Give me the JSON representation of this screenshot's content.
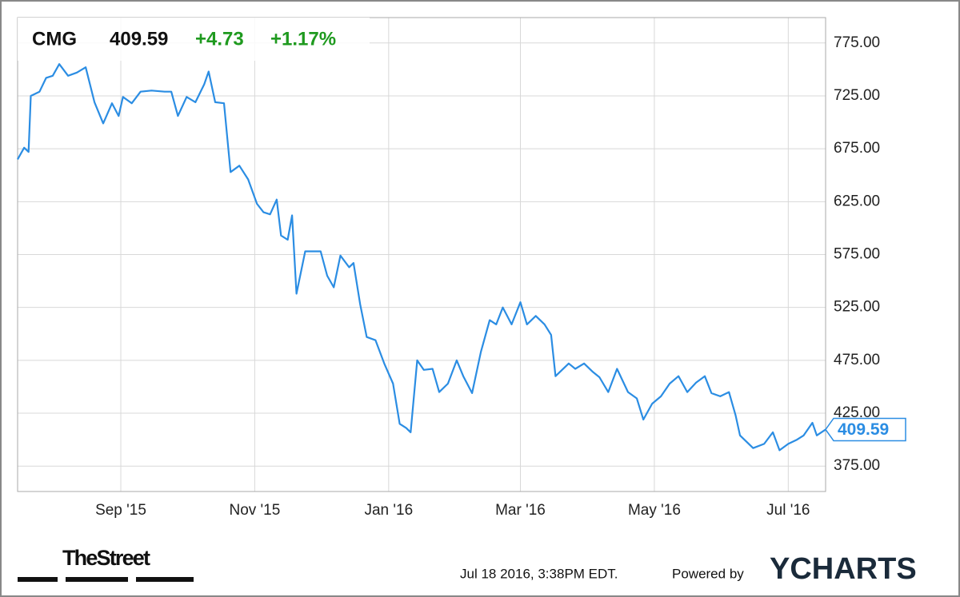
{
  "chart_data": {
    "type": "line",
    "ticker": "CMG",
    "price": 409.59,
    "change": "+4.73",
    "change_percent": "+1.17%",
    "color": "#2b8de3",
    "change_color": "#1f9a1f",
    "x": [
      0,
      3,
      5,
      6,
      10,
      13,
      16,
      19,
      23,
      27,
      31,
      35,
      39,
      43,
      46,
      48,
      52,
      56,
      61,
      67,
      70,
      73,
      77,
      81,
      85,
      87,
      90,
      94,
      97,
      101,
      105,
      109,
      112,
      115,
      118,
      120,
      123,
      125,
      127,
      131,
      135,
      138,
      141,
      144,
      147,
      151,
      153,
      156,
      159,
      163,
      167,
      171,
      174,
      177,
      179,
      182,
      185,
      189,
      192,
      196,
      200,
      203,
      207,
      211,
      215,
      218,
      221,
      225,
      229,
      232,
      236,
      240,
      243,
      245,
      251,
      254,
      258,
      262,
      265,
      269,
      273,
      278,
      282,
      285,
      289,
      293,
      297,
      301,
      305,
      309,
      313,
      316,
      320,
      324,
      327,
      329,
      335,
      340,
      344,
      347,
      351,
      355,
      358,
      362,
      364,
      368
    ],
    "values": [
      665,
      676,
      672,
      725,
      729,
      742,
      744,
      755,
      744,
      747,
      752,
      719,
      699,
      718,
      706,
      724,
      718,
      729,
      730,
      729,
      729,
      706,
      724,
      719,
      736,
      748,
      719,
      718,
      653,
      659,
      646,
      623,
      615,
      613,
      627,
      593,
      589,
      612,
      538,
      578,
      578,
      578,
      555,
      544,
      574,
      563,
      567,
      528,
      497,
      494,
      472,
      453,
      415,
      411,
      407,
      475,
      466,
      467,
      445,
      453,
      475,
      460,
      444,
      483,
      513,
      509,
      525,
      509,
      530,
      509,
      517,
      509,
      499,
      460,
      472,
      467,
      472,
      464,
      459,
      445,
      467,
      445,
      439,
      419,
      434,
      441,
      453,
      460,
      445,
      454,
      460,
      444,
      441,
      445,
      423,
      404,
      392,
      396,
      407,
      390,
      396,
      400,
      404,
      416,
      404,
      409.59
    ],
    "xlim": [
      0,
      368
    ],
    "xticks": [
      {
        "value": 47,
        "label": "Sep '15"
      },
      {
        "value": 108,
        "label": "Nov '15"
      },
      {
        "value": 169,
        "label": "Jan '16"
      },
      {
        "value": 229,
        "label": "Mar '16"
      },
      {
        "value": 290,
        "label": "May '16"
      },
      {
        "value": 351,
        "label": "Jul '16"
      }
    ],
    "ylim": [
      351,
      799
    ],
    "yticks": [
      {
        "value": 375,
        "label": "375.00"
      },
      {
        "value": 425,
        "label": "425.00"
      },
      {
        "value": 475,
        "label": "475.00"
      },
      {
        "value": 525,
        "label": "525.00"
      },
      {
        "value": 575,
        "label": "575.00"
      },
      {
        "value": 625,
        "label": "625.00"
      },
      {
        "value": 675,
        "label": "675.00"
      },
      {
        "value": 725,
        "label": "725.00"
      },
      {
        "value": 775,
        "label": "775.00"
      }
    ],
    "grid": true,
    "source": "TheStreet",
    "timestamp": "Jul 18 2016, 3:38PM EDT.",
    "powered_by": "Powered by",
    "brand": "YCHARTS"
  }
}
